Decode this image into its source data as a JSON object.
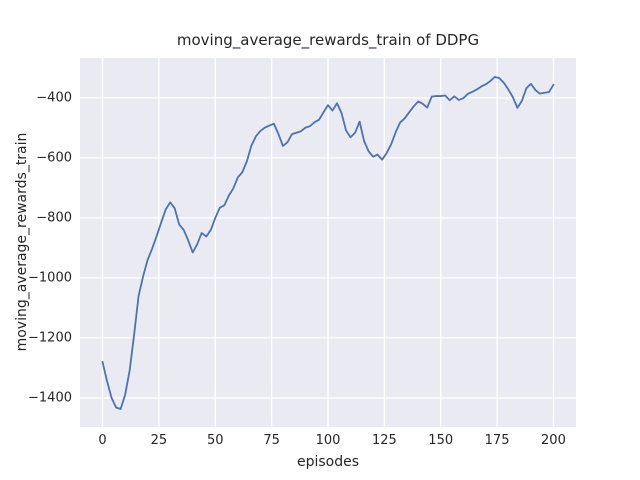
{
  "chart_data": {
    "type": "line",
    "title": "moving_average_rewards_train of DDPG",
    "xlabel": "episodes",
    "ylabel": "moving_average_rewards_train",
    "xlim": [
      -10,
      210
    ],
    "ylim": [
      -1499,
      -267
    ],
    "x_ticks": [
      0,
      25,
      50,
      75,
      100,
      125,
      150,
      175,
      200
    ],
    "y_ticks": [
      -1400,
      -1200,
      -1000,
      -800,
      -600,
      -400
    ],
    "grid": true,
    "legend_position": "none",
    "style": {
      "axes_background": "#EAEAF2",
      "grid_color": "#FFFFFF",
      "line_color": "#4C72B0",
      "text_color": "#262626",
      "figure_background": "#FFFFFF"
    },
    "series": [
      {
        "name": "moving_average_rewards_train",
        "points": [
          [
            0,
            -1280
          ],
          [
            2,
            -1345
          ],
          [
            4,
            -1400
          ],
          [
            6,
            -1432
          ],
          [
            8,
            -1437
          ],
          [
            10,
            -1390
          ],
          [
            12,
            -1310
          ],
          [
            14,
            -1190
          ],
          [
            16,
            -1060
          ],
          [
            18,
            -995
          ],
          [
            20,
            -940
          ],
          [
            22,
            -903
          ],
          [
            24,
            -860
          ],
          [
            26,
            -815
          ],
          [
            28,
            -772
          ],
          [
            30,
            -748
          ],
          [
            32,
            -768
          ],
          [
            34,
            -822
          ],
          [
            36,
            -840
          ],
          [
            38,
            -875
          ],
          [
            40,
            -915
          ],
          [
            42,
            -888
          ],
          [
            44,
            -850
          ],
          [
            46,
            -862
          ],
          [
            48,
            -840
          ],
          [
            50,
            -800
          ],
          [
            52,
            -766
          ],
          [
            54,
            -758
          ],
          [
            56,
            -726
          ],
          [
            58,
            -702
          ],
          [
            60,
            -665
          ],
          [
            62,
            -648
          ],
          [
            64,
            -612
          ],
          [
            66,
            -560
          ],
          [
            68,
            -528
          ],
          [
            70,
            -510
          ],
          [
            72,
            -499
          ],
          [
            74,
            -492
          ],
          [
            76,
            -486
          ],
          [
            78,
            -520
          ],
          [
            80,
            -560
          ],
          [
            82,
            -548
          ],
          [
            84,
            -521
          ],
          [
            86,
            -516
          ],
          [
            88,
            -511
          ],
          [
            90,
            -499
          ],
          [
            92,
            -494
          ],
          [
            94,
            -481
          ],
          [
            96,
            -473
          ],
          [
            98,
            -448
          ],
          [
            100,
            -424
          ],
          [
            102,
            -442
          ],
          [
            104,
            -418
          ],
          [
            106,
            -450
          ],
          [
            108,
            -508
          ],
          [
            110,
            -531
          ],
          [
            112,
            -516
          ],
          [
            114,
            -479
          ],
          [
            116,
            -544
          ],
          [
            118,
            -578
          ],
          [
            120,
            -596
          ],
          [
            122,
            -589
          ],
          [
            124,
            -606
          ],
          [
            126,
            -584
          ],
          [
            128,
            -555
          ],
          [
            130,
            -515
          ],
          [
            132,
            -482
          ],
          [
            134,
            -468
          ],
          [
            136,
            -448
          ],
          [
            138,
            -428
          ],
          [
            140,
            -412
          ],
          [
            142,
            -420
          ],
          [
            144,
            -432
          ],
          [
            146,
            -396
          ],
          [
            148,
            -394
          ],
          [
            150,
            -394
          ],
          [
            152,
            -392
          ],
          [
            154,
            -408
          ],
          [
            156,
            -395
          ],
          [
            158,
            -407
          ],
          [
            160,
            -401
          ],
          [
            162,
            -387
          ],
          [
            164,
            -380
          ],
          [
            166,
            -372
          ],
          [
            168,
            -362
          ],
          [
            170,
            -355
          ],
          [
            172,
            -344
          ],
          [
            174,
            -330
          ],
          [
            176,
            -334
          ],
          [
            178,
            -350
          ],
          [
            180,
            -372
          ],
          [
            182,
            -398
          ],
          [
            184,
            -433
          ],
          [
            186,
            -410
          ],
          [
            188,
            -368
          ],
          [
            190,
            -353
          ],
          [
            192,
            -374
          ],
          [
            194,
            -386
          ],
          [
            196,
            -383
          ],
          [
            198,
            -381
          ],
          [
            200,
            -356
          ]
        ]
      }
    ]
  }
}
